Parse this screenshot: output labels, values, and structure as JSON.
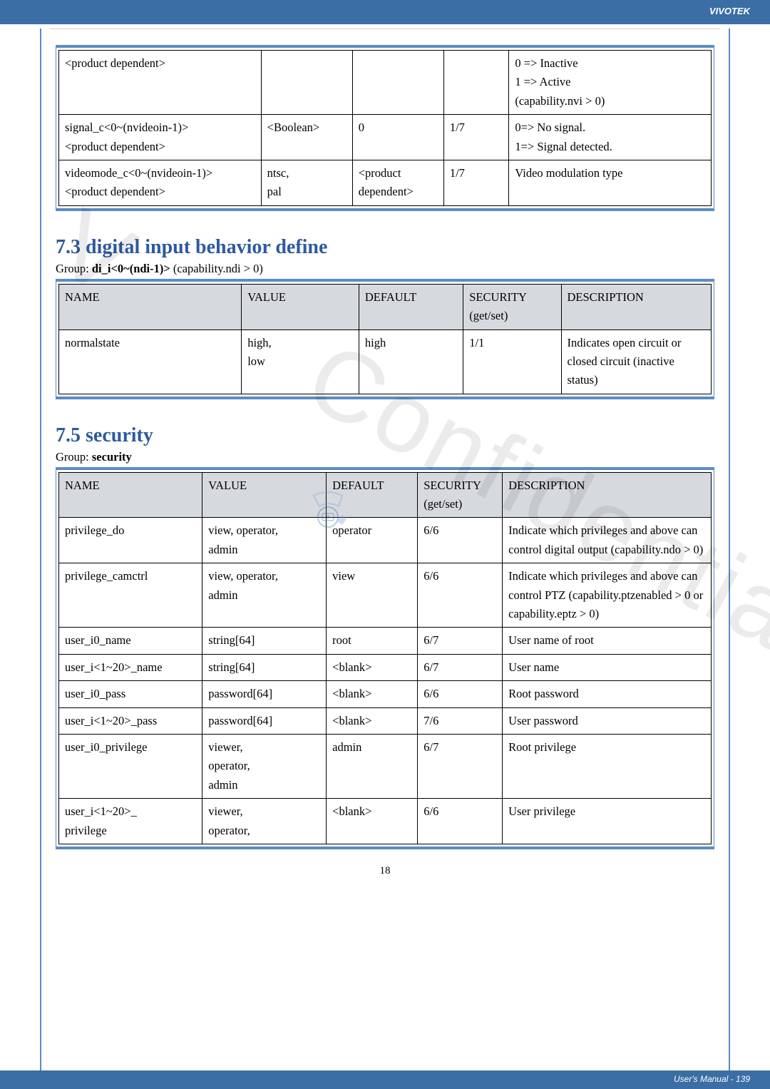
{
  "brand": "VIVOTEK",
  "footer": "User's Manual - 139",
  "page_num": "18",
  "table1": {
    "rows": [
      {
        "c0": "<product dependent>",
        "c1": "",
        "c2": "",
        "c3": "",
        "c4": "0 => Inactive\n1 => Active\n(capability.nvi > 0)"
      },
      {
        "c0": "signal_c<0~(nvideoin-1)>\n<product dependent>",
        "c1": "<Boolean>",
        "c2": "0",
        "c3": "1/7",
        "c4": "0=> No signal.\n1=> Signal detected."
      },
      {
        "c0": "videomode_c<0~(nvideoin-1)>\n<product dependent>",
        "c1": "ntsc,\npal",
        "c2": "<product dependent>",
        "c3": "1/7",
        "c4": "Video modulation type"
      }
    ]
  },
  "section73": {
    "title": "7.3 digital input behavior define",
    "group_prefix": "Group: ",
    "group_bold": "di_i<0~(ndi-1)>",
    "group_suffix": " (capability.ndi > 0)",
    "header": {
      "c0": "NAME",
      "c1": "VALUE",
      "c2": "DEFAULT",
      "c3": "SECURITY\n(get/set)",
      "c4": "DESCRIPTION"
    },
    "rows": [
      {
        "c0": "normalstate",
        "c1": "high,\nlow",
        "c2": "high",
        "c3": "1/1",
        "c4": "Indicates open circuit or closed circuit (inactive status)"
      }
    ]
  },
  "section75": {
    "title": "7.5 security",
    "group_prefix": "Group: ",
    "group_bold": "security",
    "header": {
      "c0": "NAME",
      "c1": "VALUE",
      "c2": "DEFAULT",
      "c3": "SECURITY\n(get/set)",
      "c4": "DESCRIPTION"
    },
    "rows": [
      {
        "c0": "privilege_do",
        "c1": "view, operator,\nadmin",
        "c2": "operator",
        "c3": "6/6",
        "c4": "Indicate which privileges and above can control digital output (capability.ndo > 0)"
      },
      {
        "c0": "privilege_camctrl",
        "c1": "view, operator,\nadmin",
        "c2": "view",
        "c3": "6/6",
        "c4": "Indicate which privileges and above can control PTZ (capability.ptzenabled > 0 or capability.eptz > 0)"
      },
      {
        "c0": "user_i0_name",
        "c1": "string[64]",
        "c2": "root",
        "c3": "6/7",
        "c4": "User name of root"
      },
      {
        "c0": "user_i<1~20>_name",
        "c1": "string[64]",
        "c2": "<blank>",
        "c3": "6/7",
        "c4": "User name"
      },
      {
        "c0": "user_i0_pass",
        "c1": "password[64]",
        "c2": "<blank>",
        "c3": "6/6",
        "c4": "Root password"
      },
      {
        "c0": "user_i<1~20>_pass",
        "c1": "password[64]",
        "c2": "<blank>",
        "c3": "7/6",
        "c4": "User password"
      },
      {
        "c0": "user_i0_privilege",
        "c1": "viewer,\noperator,\nadmin",
        "c2": "admin",
        "c3": "6/7",
        "c4": "Root privilege"
      },
      {
        "c0": "user_i<1~20>_\nprivilege",
        "c1": "viewer,\noperator,",
        "c2": "<blank>",
        "c3": "6/6",
        "c4": "User privilege"
      }
    ]
  },
  "colwidths_t1": [
    "31%",
    "14%",
    "14%",
    "10%",
    "31%"
  ],
  "colwidths_t2": [
    "28%",
    "18%",
    "16%",
    "15%",
    "26%"
  ],
  "colwidths_t3": [
    "22%",
    "19%",
    "14%",
    "13%",
    "32%"
  ]
}
